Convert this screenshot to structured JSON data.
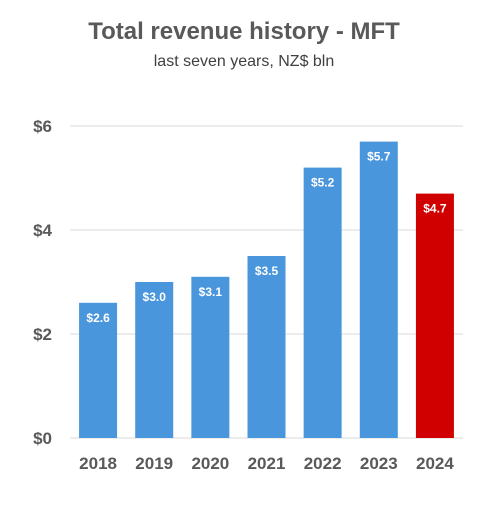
{
  "chart_data": {
    "type": "bar",
    "title": "Total revenue history - MFT",
    "subtitle": "last seven years, NZ$ bln",
    "categories": [
      "2018",
      "2019",
      "2020",
      "2021",
      "2022",
      "2023",
      "2024"
    ],
    "values": [
      2.6,
      3.0,
      3.1,
      3.5,
      5.2,
      5.7,
      4.7
    ],
    "data_labels": [
      "$2.6",
      "$3.0",
      "$3.1",
      "$3.5",
      "$5.2",
      "$5.7",
      "$4.7"
    ],
    "yticks": [
      0,
      2,
      4,
      6
    ],
    "ytick_labels": [
      "$0",
      "$2",
      "$4",
      "$6"
    ],
    "ylim": [
      0,
      6
    ],
    "grid": true,
    "legend": "none",
    "colors": {
      "bar": "#4a96dc",
      "highlight_bar": "#d00000",
      "grid": "#d9d9d9",
      "text": "#595959"
    },
    "highlight_index": 6
  }
}
